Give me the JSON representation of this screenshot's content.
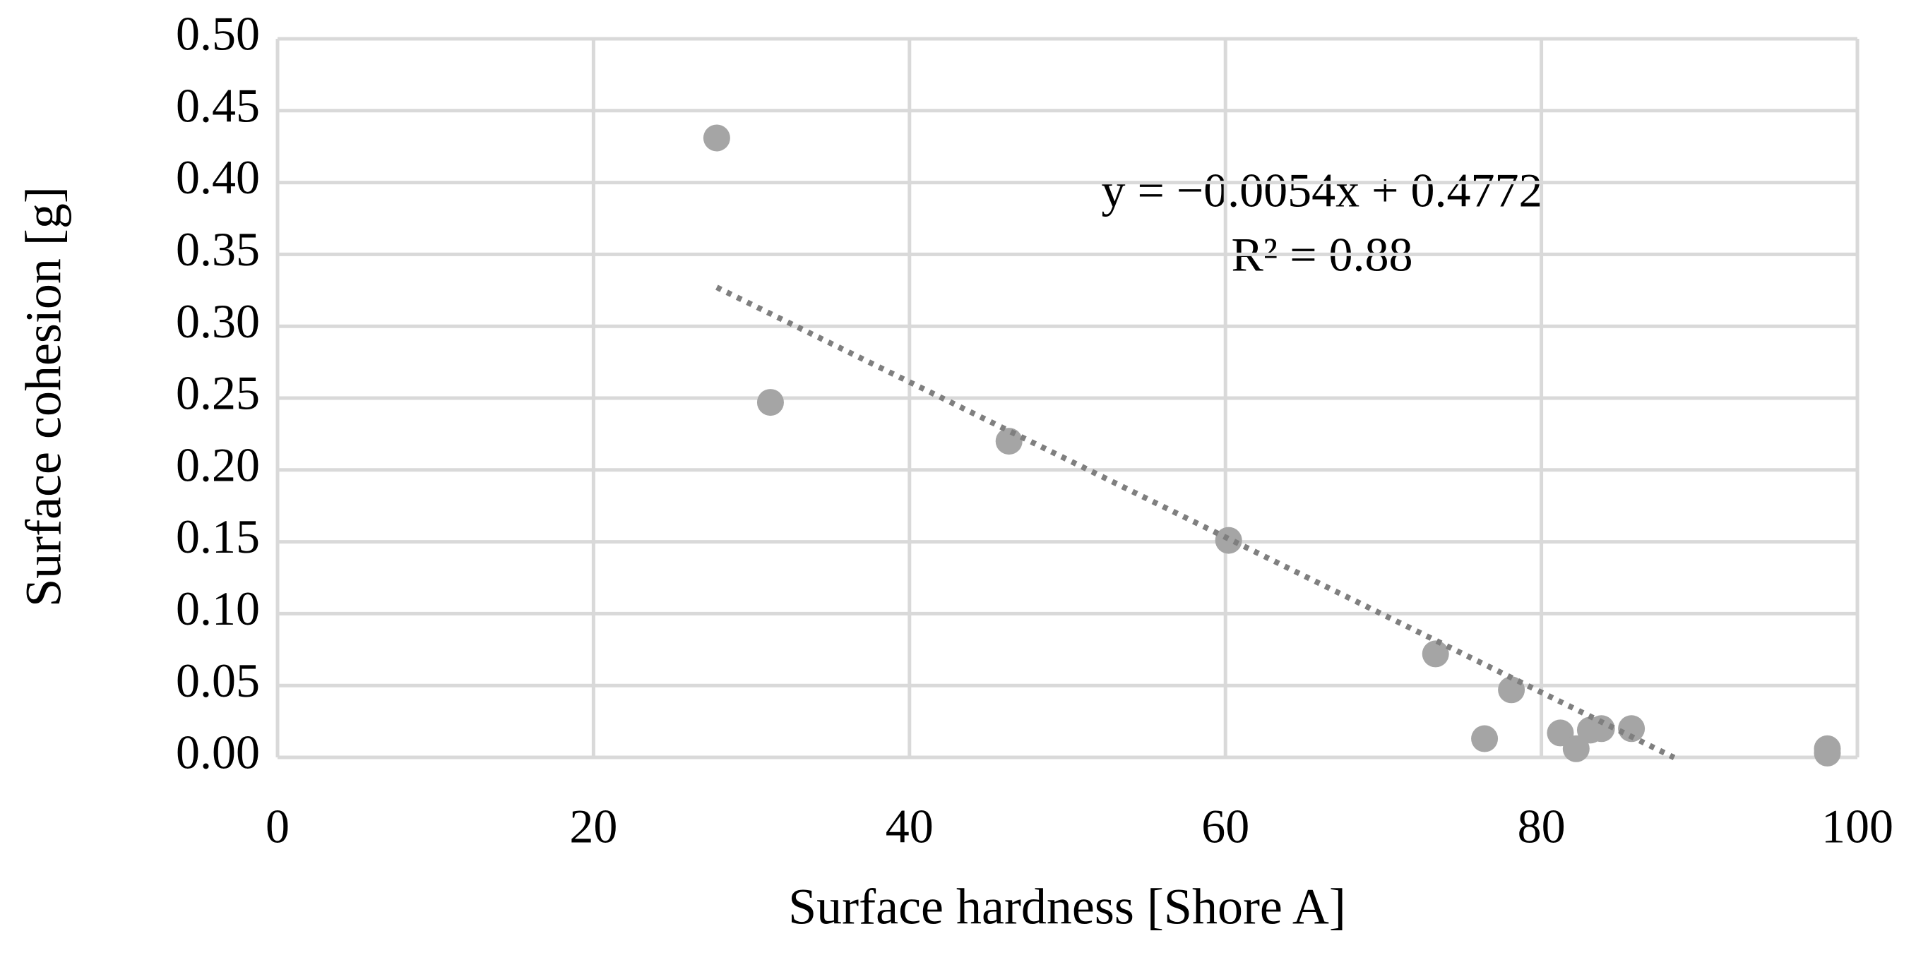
{
  "chart_data": {
    "type": "scatter",
    "x_label": "Surface hardness [Shore A]",
    "y_label": "Surface cohesion [g]",
    "x": [
      27.8,
      31.2,
      46.3,
      60.2,
      73.3,
      76.4,
      78.1,
      81.2,
      82.2,
      83.1,
      83.8,
      85.7,
      98.1,
      98.1
    ],
    "values": [
      0.431,
      0.247,
      0.22,
      0.151,
      0.072,
      0.013,
      0.047,
      0.017,
      0.006,
      0.019,
      0.02,
      0.02,
      0.006,
      0.003
    ],
    "color": "#a5a5a5",
    "xlim": [
      0,
      100
    ],
    "xticks": [
      0,
      20,
      40,
      60,
      80,
      100
    ],
    "ylim": [
      0,
      0.5
    ],
    "yticks": [
      {
        "value": 0,
        "label": "0.00"
      },
      {
        "value": 0.05,
        "label": "0.05"
      },
      {
        "value": 0.1,
        "label": "0.10"
      },
      {
        "value": 0.15,
        "label": "0.15"
      },
      {
        "value": 0.2,
        "label": "0.20"
      },
      {
        "value": 0.25,
        "label": "0.25"
      },
      {
        "value": 0.3,
        "label": "0.30"
      },
      {
        "value": 0.35,
        "label": "0.35"
      },
      {
        "value": 0.4,
        "label": "0.40"
      },
      {
        "value": 0.45,
        "label": "0.45"
      },
      {
        "value": 0.5,
        "label": "0.50"
      }
    ],
    "grid": true,
    "trendline": {
      "equation": "y = −0.0054x + 0.4772",
      "r_squared": "R² = 0.88",
      "slope": -0.0054,
      "intercept": 0.4772,
      "x": [
        27.8,
        88.4
      ],
      "color": "#7f7f7f"
    }
  }
}
